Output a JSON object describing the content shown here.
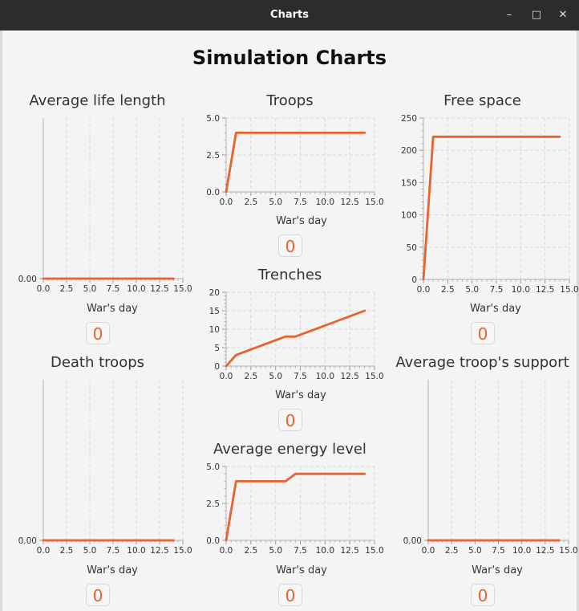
{
  "window": {
    "title": "Charts",
    "controls": {
      "minimize": "–",
      "maximize": "□",
      "close": "✕"
    }
  },
  "page_title": "Simulation Charts",
  "accent_color": "#e8622d",
  "badges": [
    "0",
    "0",
    "0",
    "0",
    "0",
    "0",
    "0"
  ],
  "chart_data": [
    {
      "id": "avg-life",
      "type": "line",
      "title": "Average life length",
      "xlabel": "War's day",
      "ylabel": "",
      "xlim": [
        0,
        15
      ],
      "xticks": [
        "0.0",
        "2.5",
        "5.0",
        "7.5",
        "10.0",
        "12.5",
        "15.0"
      ],
      "yticks": [
        "0.00"
      ],
      "ylim": [
        0,
        1
      ],
      "grid": true,
      "series": [
        {
          "x": [
            0,
            14
          ],
          "y": [
            0,
            0
          ]
        }
      ]
    },
    {
      "id": "troops",
      "type": "line",
      "title": "Troops",
      "xlabel": "War's day",
      "ylabel": "",
      "xlim": [
        0,
        15
      ],
      "xticks": [
        "0.0",
        "2.5",
        "5.0",
        "7.5",
        "10.0",
        "12.5",
        "15.0"
      ],
      "yticks": [
        "0.0",
        "2.5",
        "5.0"
      ],
      "ylim": [
        0,
        5
      ],
      "grid": true,
      "series": [
        {
          "x": [
            0,
            1,
            14
          ],
          "y": [
            0,
            4,
            4
          ]
        }
      ]
    },
    {
      "id": "free-space",
      "type": "line",
      "title": "Free space",
      "xlabel": "War's day",
      "ylabel": "",
      "xlim": [
        0,
        15
      ],
      "xticks": [
        "0.0",
        "2.5",
        "5.0",
        "7.5",
        "10.0",
        "12.5",
        "15.0"
      ],
      "yticks": [
        "0",
        "50",
        "100",
        "150",
        "200",
        "250"
      ],
      "ylim": [
        0,
        250
      ],
      "grid": true,
      "series": [
        {
          "x": [
            0,
            1,
            14
          ],
          "y": [
            0,
            221,
            221
          ]
        }
      ]
    },
    {
      "id": "trenches",
      "type": "line",
      "title": "Trenches",
      "xlabel": "War's day",
      "ylabel": "",
      "xlim": [
        0,
        15
      ],
      "xticks": [
        "0.0",
        "2.5",
        "5.0",
        "7.5",
        "10.0",
        "12.5",
        "15.0"
      ],
      "yticks": [
        "0",
        "5",
        "10",
        "15",
        "20"
      ],
      "ylim": [
        0,
        20
      ],
      "grid": true,
      "series": [
        {
          "x": [
            0,
            1,
            6,
            7,
            14
          ],
          "y": [
            0,
            3,
            8,
            8,
            15
          ]
        }
      ]
    },
    {
      "id": "death-troops",
      "type": "line",
      "title": "Death troops",
      "xlabel": "War's day",
      "ylabel": "",
      "xlim": [
        0,
        15
      ],
      "xticks": [
        "0.0",
        "2.5",
        "5.0",
        "7.5",
        "10.0",
        "12.5",
        "15.0"
      ],
      "yticks": [
        "0.00"
      ],
      "ylim": [
        0,
        1
      ],
      "grid": true,
      "series": [
        {
          "x": [
            0,
            14
          ],
          "y": [
            0,
            0
          ]
        }
      ]
    },
    {
      "id": "avg-energy",
      "type": "line",
      "title": "Average energy level",
      "xlabel": "War's day",
      "ylabel": "",
      "xlim": [
        0,
        15
      ],
      "xticks": [
        "0.0",
        "2.5",
        "5.0",
        "7.5",
        "10.0",
        "12.5",
        "15.0"
      ],
      "yticks": [
        "0.0",
        "2.5",
        "5.0"
      ],
      "ylim": [
        0,
        5
      ],
      "grid": true,
      "series": [
        {
          "x": [
            0,
            1,
            6,
            7,
            14
          ],
          "y": [
            0,
            4,
            4,
            4.5,
            4.5
          ]
        }
      ]
    },
    {
      "id": "avg-support",
      "type": "line",
      "title": "Average troop's support",
      "xlabel": "War's day",
      "ylabel": "",
      "xlim": [
        0,
        15
      ],
      "xticks": [
        "0.0",
        "2.5",
        "5.0",
        "7.5",
        "10.0",
        "12.5",
        "15.0"
      ],
      "yticks": [
        "0.00"
      ],
      "ylim": [
        0,
        1
      ],
      "grid": true,
      "series": [
        {
          "x": [
            0,
            14
          ],
          "y": [
            0,
            0
          ]
        }
      ]
    }
  ]
}
